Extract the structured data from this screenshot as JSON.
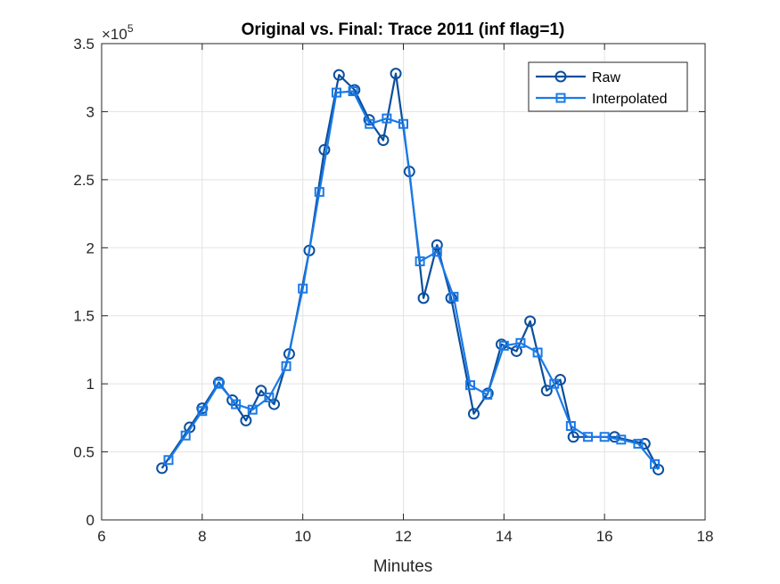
{
  "chart_data": {
    "type": "line",
    "title": "Original vs. Final: Trace 2011 (inf flag=1)",
    "xlabel": "Minutes",
    "ylabel": "",
    "xlim": [
      6,
      18
    ],
    "ylim": [
      0,
      350000
    ],
    "x_ticks": [
      "6",
      "8",
      "10",
      "12",
      "14",
      "16",
      "18"
    ],
    "y_ticks": [
      "0",
      "0.5",
      "1",
      "1.5",
      "2",
      "2.5",
      "3",
      "3.5"
    ],
    "y_multiplier": {
      "base": "×10",
      "exponent": "5"
    },
    "grid": true,
    "legend_position": "top-right",
    "series": [
      {
        "name": "Raw",
        "color": "#0b4f9c",
        "marker": "circle",
        "x": [
          7.2,
          7.75,
          8.0,
          8.33,
          8.6,
          8.87,
          9.17,
          9.43,
          9.73,
          10.13,
          10.43,
          10.72,
          11.03,
          11.32,
          11.6,
          11.85,
          12.12,
          12.4,
          12.67,
          12.95,
          13.4,
          13.68,
          13.95,
          14.25,
          14.52,
          14.85,
          15.12,
          15.38,
          16.2,
          16.8,
          17.07
        ],
        "y": [
          38000,
          68000,
          82000,
          101000,
          88000,
          73000,
          95000,
          85000,
          122000,
          198000,
          272000,
          327000,
          316000,
          294000,
          279000,
          328000,
          256000,
          163000,
          202000,
          163000,
          78000,
          93000,
          129000,
          124000,
          146000,
          95000,
          103000,
          61000,
          61000,
          56000,
          37000
        ]
      },
      {
        "name": "Interpolated",
        "color": "#1a7ae8",
        "marker": "square",
        "x": [
          7.33,
          7.67,
          8.0,
          8.33,
          8.67,
          9.0,
          9.33,
          9.67,
          10.0,
          10.33,
          10.67,
          11.0,
          11.33,
          11.67,
          12.0,
          12.33,
          12.67,
          13.0,
          13.33,
          13.67,
          14.0,
          14.33,
          14.67,
          15.0,
          15.33,
          15.67,
          16.0,
          16.33,
          16.67,
          17.0
        ],
        "y": [
          44000,
          62000,
          80000,
          100000,
          85000,
          81000,
          90000,
          113000,
          170000,
          241000,
          314000,
          315000,
          291000,
          295000,
          291000,
          190000,
          197000,
          164000,
          99000,
          92000,
          128000,
          130000,
          123000,
          100000,
          69000,
          61000,
          61000,
          59000,
          56000,
          41000
        ]
      }
    ]
  }
}
